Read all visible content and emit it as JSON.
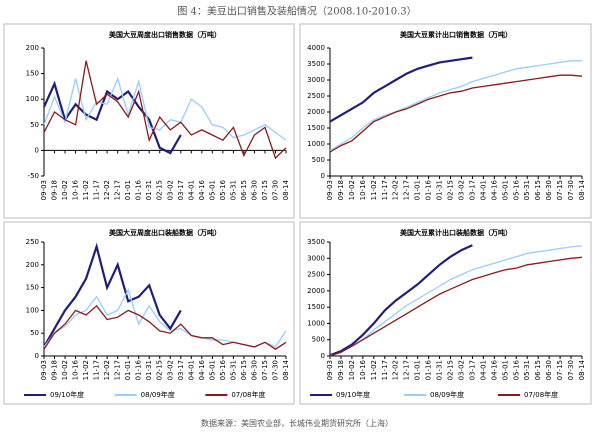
{
  "title": "图 4：美豆出口销售及装船情况（2008.10-2010.3）",
  "source": "数据来源：美国农业部，长城伟业期货研究所（上海）",
  "chart_data": [
    {
      "type": "line",
      "title": "美国大豆周度出口销售数据（万吨）",
      "categories": [
        "09-03",
        "09-18",
        "10-02",
        "10-16",
        "11-02",
        "11-17",
        "12-02",
        "12-17",
        "01-01",
        "01-16",
        "01-31",
        "02-15",
        "03-02",
        "03-17",
        "04-01",
        "04-16",
        "05-01",
        "05-16",
        "05-31",
        "06-15",
        "06-30",
        "07-15",
        "07-30",
        "08-14"
      ],
      "ylim": [
        -50,
        200
      ],
      "yticks": [
        -50,
        0,
        50,
        100,
        150,
        200
      ],
      "series": [
        {
          "color": "#1f1f7a",
          "values": [
            85,
            130,
            60,
            90,
            70,
            60,
            115,
            100,
            115,
            85,
            60,
            5,
            -5,
            30,
            null,
            null,
            null,
            null,
            null,
            null,
            null,
            null,
            null,
            null
          ]
        },
        {
          "color": "#99ccff",
          "values": [
            50,
            105,
            55,
            140,
            60,
            95,
            90,
            140,
            70,
            135,
            45,
            40,
            60,
            55,
            100,
            85,
            50,
            45,
            25,
            30,
            40,
            50,
            35,
            20
          ]
        },
        {
          "color": "#8b1a1a",
          "values": [
            35,
            75,
            60,
            50,
            175,
            90,
            110,
            95,
            65,
            115,
            20,
            65,
            40,
            55,
            30,
            40,
            30,
            20,
            45,
            -10,
            30,
            45,
            -15,
            5
          ]
        }
      ]
    },
    {
      "type": "line",
      "title": "美国大豆累计出口销售数据（万吨）",
      "categories": [
        "09-03",
        "09-18",
        "10-02",
        "10-16",
        "11-02",
        "11-17",
        "12-02",
        "12-17",
        "01-01",
        "01-16",
        "01-31",
        "02-15",
        "03-02",
        "03-17",
        "04-01",
        "04-16",
        "05-01",
        "05-16",
        "05-31",
        "06-15",
        "06-30",
        "07-15",
        "07-30",
        "08-14"
      ],
      "ylim": [
        0,
        4000
      ],
      "yticks": [
        0,
        500,
        1000,
        1500,
        2000,
        2500,
        3000,
        3500,
        4000
      ],
      "series": [
        {
          "color": "#1f1f7a",
          "values": [
            1700,
            1900,
            2100,
            2300,
            2600,
            2800,
            3000,
            3200,
            3350,
            3450,
            3550,
            3600,
            3650,
            3700,
            null,
            null,
            null,
            null,
            null,
            null,
            null,
            null,
            null,
            null
          ]
        },
        {
          "color": "#99ccff",
          "values": [
            800,
            1000,
            1200,
            1500,
            1750,
            1900,
            2000,
            2150,
            2300,
            2450,
            2600,
            2700,
            2800,
            2950,
            3050,
            3150,
            3250,
            3350,
            3400,
            3450,
            3500,
            3550,
            3600,
            3600
          ]
        },
        {
          "color": "#8b1a1a",
          "values": [
            750,
            950,
            1100,
            1400,
            1700,
            1850,
            2000,
            2100,
            2250,
            2400,
            2500,
            2600,
            2650,
            2750,
            2800,
            2850,
            2900,
            2950,
            3000,
            3050,
            3100,
            3150,
            3150,
            3120
          ]
        }
      ]
    },
    {
      "type": "line",
      "title": "美国大豆周度出口装船数据（万吨）",
      "categories": [
        "09-03",
        "09-18",
        "10-02",
        "10-16",
        "11-02",
        "11-17",
        "12-02",
        "12-17",
        "01-01",
        "01-16",
        "01-31",
        "02-15",
        "03-02",
        "03-17",
        "04-01",
        "04-16",
        "05-01",
        "05-16",
        "05-31",
        "06-15",
        "06-30",
        "07-15",
        "07-30",
        "08-14"
      ],
      "ylim": [
        0,
        250
      ],
      "yticks": [
        0,
        50,
        100,
        150,
        200,
        250
      ],
      "series": [
        {
          "name": "09/10年度",
          "color": "#1f1f7a",
          "values": [
            20,
            60,
            100,
            130,
            170,
            240,
            150,
            200,
            120,
            130,
            155,
            90,
            60,
            100,
            null,
            null,
            null,
            null,
            null,
            null,
            null,
            null,
            null,
            null
          ]
        },
        {
          "name": "08/09年度",
          "color": "#99ccff",
          "values": [
            20,
            50,
            65,
            90,
            100,
            130,
            90,
            100,
            145,
            70,
            110,
            75,
            55,
            60,
            45,
            40,
            35,
            35,
            30,
            25,
            20,
            30,
            20,
            55
          ]
        },
        {
          "name": "07/08年度",
          "color": "#8b1a1a",
          "values": [
            15,
            50,
            70,
            100,
            90,
            110,
            80,
            85,
            100,
            90,
            75,
            55,
            50,
            70,
            45,
            40,
            40,
            25,
            30,
            25,
            20,
            30,
            15,
            30
          ]
        }
      ]
    },
    {
      "type": "line",
      "title": "美国大豆累计出口装船数据（万吨）",
      "categories": [
        "09-03",
        "09-18",
        "10-02",
        "10-16",
        "11-02",
        "11-17",
        "12-02",
        "12-17",
        "01-01",
        "01-16",
        "01-31",
        "02-15",
        "03-02",
        "03-17",
        "04-01",
        "04-16",
        "05-01",
        "05-16",
        "05-31",
        "06-15",
        "06-30",
        "07-15",
        "07-30",
        "08-14"
      ],
      "ylim": [
        0,
        3500
      ],
      "yticks": [
        0,
        500,
        1000,
        1500,
        2000,
        2500,
        3000,
        3500
      ],
      "series": [
        {
          "name": "09/10年度",
          "color": "#1f1f7a",
          "values": [
            20,
            150,
            350,
            650,
            1000,
            1400,
            1700,
            1950,
            2200,
            2500,
            2800,
            3050,
            3250,
            3400,
            null,
            null,
            null,
            null,
            null,
            null,
            null,
            null,
            null,
            null
          ]
        },
        {
          "name": "08/09年度",
          "color": "#99ccff",
          "values": [
            10,
            100,
            300,
            500,
            800,
            1050,
            1300,
            1550,
            1750,
            1950,
            2150,
            2350,
            2500,
            2650,
            2750,
            2850,
            2950,
            3050,
            3150,
            3200,
            3250,
            3300,
            3350,
            3380
          ]
        },
        {
          "name": "07/08年度",
          "color": "#8b1a1a",
          "values": [
            0,
            120,
            300,
            500,
            700,
            900,
            1100,
            1300,
            1500,
            1700,
            1900,
            2050,
            2200,
            2350,
            2450,
            2550,
            2650,
            2700,
            2800,
            2850,
            2900,
            2950,
            3000,
            3030
          ]
        }
      ]
    }
  ]
}
